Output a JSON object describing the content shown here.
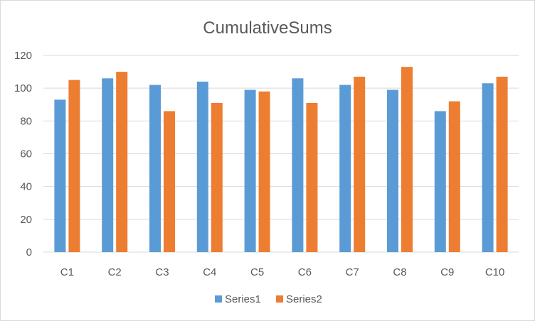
{
  "chart_data": {
    "type": "bar",
    "title": "CumulativeSums",
    "xlabel": "",
    "ylabel": "",
    "categories": [
      "C1",
      "C2",
      "C3",
      "C4",
      "C5",
      "C6",
      "C7",
      "C8",
      "C9",
      "C10"
    ],
    "series": [
      {
        "name": "Series1",
        "color": "#5b9bd5",
        "values": [
          93,
          106,
          102,
          104,
          99,
          106,
          102,
          99,
          86,
          103
        ]
      },
      {
        "name": "Series2",
        "color": "#ed7d31",
        "values": [
          105,
          110,
          86,
          91,
          98,
          91,
          107,
          113,
          92,
          107
        ]
      }
    ],
    "ylim": [
      0,
      120
    ],
    "yticks": [
      "0",
      "20",
      "40",
      "60",
      "80",
      "100",
      "120"
    ],
    "grid": true,
    "legend": "bottom"
  }
}
